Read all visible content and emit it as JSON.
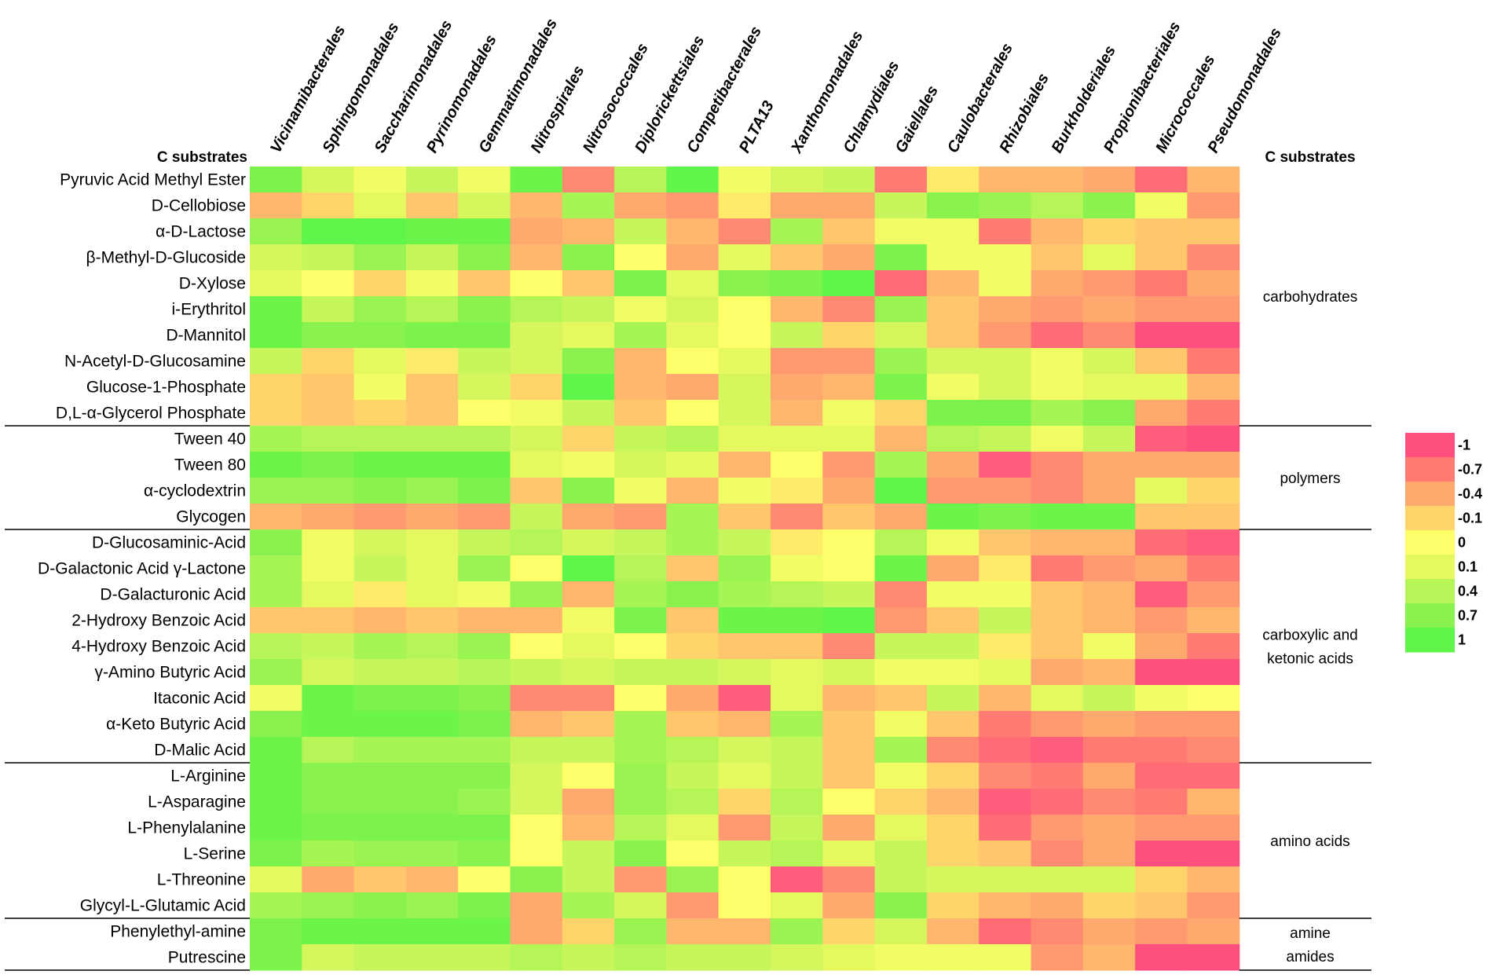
{
  "chart_data": {
    "type": "heatmap",
    "header_left": "C substrates",
    "header_right": "C substrates",
    "columns": [
      "Vicinamibacterales",
      "Sphingomonadales",
      "Saccharimonadales",
      "Pyrinomonadales",
      "Gemmatimonadales",
      "Nitrospirales",
      "Nitrosococcales",
      "Diplorickettsiales",
      "Competibacterales",
      "PLTA13",
      "Xanthomonadales",
      "Chlamydiales",
      "Gaiellales",
      "Caulobacterales",
      "Rhizobiales",
      "Burkholderiales",
      "Propionibacteriales",
      "Micrococcales",
      "Pseudomonadales"
    ],
    "rows": [
      "Pyruvic Acid Methyl Ester",
      "D-Cellobiose",
      "α-D-Lactose",
      "β-Methyl-D-Glucoside",
      "D-Xylose",
      "i-Erythritol",
      "D-Mannitol",
      "N-Acetyl-D-Glucosamine",
      "Glucose-1-Phosphate",
      "D,L-α-Glycerol Phosphate",
      "Tween 40",
      "Tween 80",
      "α-cyclodextrin",
      "Glycogen",
      "D-Glucosaminic-Acid",
      "D-Galactonic Acid γ-Lactone",
      "D-Galacturonic Acid",
      "2-Hydroxy Benzoic Acid",
      "4-Hydroxy Benzoic Acid",
      "γ-Amino Butyric Acid",
      "Itaconic Acid",
      "α-Keto Butyric Acid",
      "D-Malic Acid",
      "L-Arginine",
      "L-Asparagine",
      "L-Phenylalanine",
      "L-Serine",
      "L-Threonine",
      "Glycyl-L-Glutamic Acid",
      "Phenylethyl-amine",
      "Putrescine"
    ],
    "values": [
      [
        0.8,
        0.2,
        0.05,
        0.3,
        0.05,
        0.9,
        -0.6,
        0.4,
        1.0,
        0.05,
        0.2,
        0.3,
        -0.7,
        -0.05,
        -0.3,
        -0.3,
        -0.4,
        -0.8,
        -0.3
      ],
      [
        -0.3,
        -0.1,
        0.1,
        -0.2,
        0.2,
        -0.3,
        0.5,
        -0.4,
        -0.5,
        -0.05,
        -0.4,
        -0.4,
        0.3,
        0.7,
        0.6,
        0.4,
        0.7,
        0.05,
        -0.5
      ],
      [
        0.6,
        1.0,
        1.0,
        0.9,
        0.9,
        -0.4,
        -0.3,
        0.3,
        -0.3,
        -0.6,
        0.5,
        -0.2,
        0.05,
        0.05,
        -0.7,
        -0.3,
        -0.1,
        -0.2,
        -0.2
      ],
      [
        0.2,
        0.3,
        0.6,
        0.3,
        0.7,
        -0.3,
        0.7,
        0.0,
        -0.4,
        0.1,
        -0.2,
        -0.4,
        0.8,
        0.05,
        0.05,
        -0.2,
        0.1,
        -0.2,
        -0.6
      ],
      [
        0.1,
        0.0,
        -0.1,
        0.05,
        -0.2,
        0.0,
        -0.2,
        0.8,
        0.1,
        0.7,
        0.8,
        1.0,
        -0.8,
        -0.3,
        0.05,
        -0.4,
        -0.5,
        -0.7,
        -0.4
      ],
      [
        0.9,
        0.3,
        0.6,
        0.4,
        0.7,
        0.4,
        0.3,
        0.05,
        0.2,
        0.0,
        -0.3,
        -0.6,
        0.6,
        -0.2,
        -0.4,
        -0.5,
        -0.4,
        -0.5,
        -0.5
      ],
      [
        0.9,
        0.7,
        0.7,
        0.8,
        0.8,
        0.2,
        0.1,
        0.5,
        0.1,
        0.0,
        0.3,
        -0.1,
        0.2,
        -0.2,
        -0.5,
        -0.8,
        -0.6,
        -1.0,
        -1.0
      ],
      [
        0.3,
        -0.1,
        0.1,
        -0.05,
        0.3,
        0.2,
        0.7,
        -0.3,
        0.0,
        0.1,
        -0.5,
        -0.5,
        0.6,
        0.2,
        0.2,
        0.05,
        0.2,
        -0.2,
        -0.7
      ],
      [
        -0.1,
        -0.2,
        0.05,
        -0.2,
        0.2,
        -0.1,
        1.0,
        -0.3,
        -0.4,
        0.2,
        -0.4,
        -0.3,
        0.8,
        0.05,
        0.2,
        0.05,
        0.1,
        0.1,
        -0.3
      ],
      [
        -0.1,
        -0.2,
        -0.1,
        -0.2,
        0.0,
        0.05,
        0.3,
        -0.2,
        0.0,
        0.2,
        -0.3,
        0.05,
        -0.1,
        0.8,
        0.8,
        0.5,
        0.7,
        -0.4,
        -0.7
      ],
      [
        0.5,
        0.4,
        0.4,
        0.4,
        0.4,
        0.2,
        -0.1,
        0.3,
        0.4,
        0.1,
        0.1,
        0.1,
        -0.3,
        0.4,
        0.3,
        0.05,
        0.3,
        -0.9,
        -1.0
      ],
      [
        0.9,
        0.8,
        0.9,
        0.9,
        0.9,
        0.1,
        0.05,
        0.2,
        0.1,
        -0.3,
        0.0,
        -0.5,
        0.5,
        -0.4,
        -0.9,
        -0.6,
        -0.4,
        -0.4,
        -0.4
      ],
      [
        0.6,
        0.6,
        0.7,
        0.6,
        0.8,
        -0.2,
        0.7,
        0.05,
        -0.3,
        0.05,
        -0.05,
        -0.4,
        1.0,
        -0.5,
        -0.5,
        -0.6,
        -0.4,
        0.1,
        -0.1
      ],
      [
        -0.3,
        -0.4,
        -0.5,
        -0.4,
        -0.5,
        0.3,
        -0.4,
        -0.5,
        0.5,
        -0.2,
        -0.6,
        -0.2,
        -0.4,
        0.9,
        0.8,
        0.9,
        0.9,
        -0.2,
        -0.2
      ],
      [
        0.7,
        0.05,
        0.2,
        0.1,
        0.3,
        0.4,
        0.2,
        0.3,
        0.5,
        0.3,
        -0.05,
        0.0,
        0.4,
        0.05,
        -0.2,
        -0.3,
        -0.3,
        -0.8,
        -0.9
      ],
      [
        0.5,
        0.05,
        0.3,
        0.1,
        0.6,
        0.0,
        1.0,
        0.4,
        -0.2,
        0.6,
        0.05,
        0.0,
        0.9,
        -0.4,
        -0.05,
        -0.7,
        -0.5,
        -0.4,
        -0.7
      ],
      [
        0.5,
        0.1,
        -0.05,
        0.1,
        0.05,
        0.6,
        -0.3,
        0.5,
        0.7,
        0.5,
        0.4,
        0.3,
        -0.6,
        0.05,
        0.05,
        -0.2,
        -0.3,
        -0.9,
        -0.5
      ],
      [
        -0.2,
        -0.2,
        -0.3,
        -0.2,
        -0.3,
        -0.3,
        0.05,
        0.8,
        -0.2,
        0.9,
        0.9,
        1.0,
        -0.5,
        -0.2,
        0.3,
        -0.2,
        -0.3,
        -0.5,
        -0.3
      ],
      [
        0.4,
        0.3,
        0.5,
        0.4,
        0.6,
        0.0,
        0.1,
        0.0,
        -0.1,
        -0.2,
        -0.2,
        -0.6,
        0.3,
        0.3,
        -0.05,
        -0.2,
        0.05,
        -0.4,
        -0.7
      ],
      [
        0.6,
        0.2,
        0.3,
        0.3,
        0.4,
        0.3,
        0.2,
        0.3,
        0.3,
        0.2,
        0.1,
        0.2,
        0.05,
        0.05,
        0.1,
        -0.4,
        -0.3,
        -1.0,
        -1.0
      ],
      [
        0.05,
        0.9,
        0.8,
        0.8,
        0.7,
        -0.6,
        -0.6,
        0.0,
        -0.4,
        -0.9,
        0.1,
        -0.3,
        -0.2,
        0.3,
        -0.3,
        0.1,
        0.3,
        0.05,
        0.0
      ],
      [
        0.7,
        0.9,
        0.9,
        0.9,
        0.8,
        -0.3,
        -0.2,
        0.5,
        -0.2,
        -0.3,
        0.5,
        -0.2,
        0.05,
        -0.2,
        -0.7,
        -0.5,
        -0.4,
        -0.5,
        -0.5
      ],
      [
        0.9,
        0.4,
        0.5,
        0.5,
        0.5,
        0.3,
        0.3,
        0.5,
        0.4,
        0.2,
        0.3,
        -0.2,
        0.5,
        -0.6,
        -0.8,
        -0.9,
        -0.7,
        -0.7,
        -0.6
      ],
      [
        0.9,
        0.7,
        0.7,
        0.7,
        0.7,
        0.2,
        0.0,
        0.6,
        0.3,
        0.1,
        0.3,
        -0.2,
        0.05,
        -0.1,
        -0.6,
        -0.7,
        -0.4,
        -0.8,
        -0.8
      ],
      [
        0.9,
        0.7,
        0.7,
        0.7,
        0.6,
        0.2,
        -0.4,
        0.6,
        0.4,
        -0.1,
        0.4,
        0.0,
        -0.1,
        -0.3,
        -0.9,
        -0.8,
        -0.6,
        -0.7,
        -0.3
      ],
      [
        0.9,
        0.8,
        0.8,
        0.8,
        0.8,
        0.0,
        -0.3,
        0.4,
        0.1,
        -0.5,
        0.3,
        -0.4,
        0.1,
        -0.1,
        -0.8,
        -0.5,
        -0.4,
        -0.5,
        -0.5
      ],
      [
        0.8,
        0.5,
        0.6,
        0.6,
        0.7,
        0.0,
        0.3,
        0.7,
        0.0,
        0.3,
        0.4,
        0.1,
        0.3,
        -0.1,
        -0.2,
        -0.6,
        -0.4,
        -1.0,
        -1.0
      ],
      [
        0.1,
        -0.4,
        -0.2,
        -0.3,
        0.0,
        0.7,
        0.3,
        -0.5,
        0.6,
        0.0,
        -0.9,
        -0.6,
        0.3,
        0.2,
        0.2,
        0.2,
        0.2,
        -0.1,
        -0.3
      ],
      [
        0.5,
        0.6,
        0.7,
        0.6,
        0.8,
        -0.4,
        0.5,
        0.2,
        -0.5,
        0.0,
        0.1,
        -0.4,
        0.7,
        -0.1,
        -0.3,
        -0.4,
        -0.1,
        -0.2,
        -0.5
      ],
      [
        0.8,
        0.9,
        0.9,
        0.9,
        0.9,
        -0.4,
        -0.1,
        0.6,
        -0.3,
        -0.3,
        0.6,
        -0.1,
        0.2,
        -0.3,
        -0.8,
        -0.6,
        -0.4,
        -0.5,
        -0.4
      ],
      [
        0.8,
        0.2,
        0.3,
        0.3,
        0.3,
        0.4,
        0.3,
        0.4,
        0.3,
        0.3,
        0.2,
        0.1,
        0.05,
        0.05,
        0.05,
        -0.5,
        -0.3,
        -1.0,
        -1.0
      ]
    ],
    "groups": [
      {
        "label_lines": [
          "carbohydrates"
        ],
        "start": 0,
        "end": 9
      },
      {
        "label_lines": [
          "polymers"
        ],
        "start": 10,
        "end": 13
      },
      {
        "label_lines": [
          "carboxylic and",
          "ketonic acids"
        ],
        "start": 14,
        "end": 22
      },
      {
        "label_lines": [
          "amino acids"
        ],
        "start": 23,
        "end": 28
      },
      {
        "label_lines": [
          "amine",
          "amides"
        ],
        "start": 29,
        "end": 30
      }
    ],
    "legend": {
      "ticks": [
        -1,
        -0.7,
        -0.4,
        -0.1,
        0,
        0.1,
        0.4,
        0.7,
        1
      ],
      "tick_labels": [
        "-1",
        "-0.7",
        "-0.4",
        "-0.1",
        "0",
        "0.1",
        "0.4",
        "0.7",
        "1"
      ],
      "colors": [
        "#ff4f7f",
        "#ff7a72",
        "#ffa96e",
        "#ffd46a",
        "#ffff6a",
        "#e5f860",
        "#b6f558",
        "#8af24e",
        "#5ff54a"
      ]
    }
  }
}
